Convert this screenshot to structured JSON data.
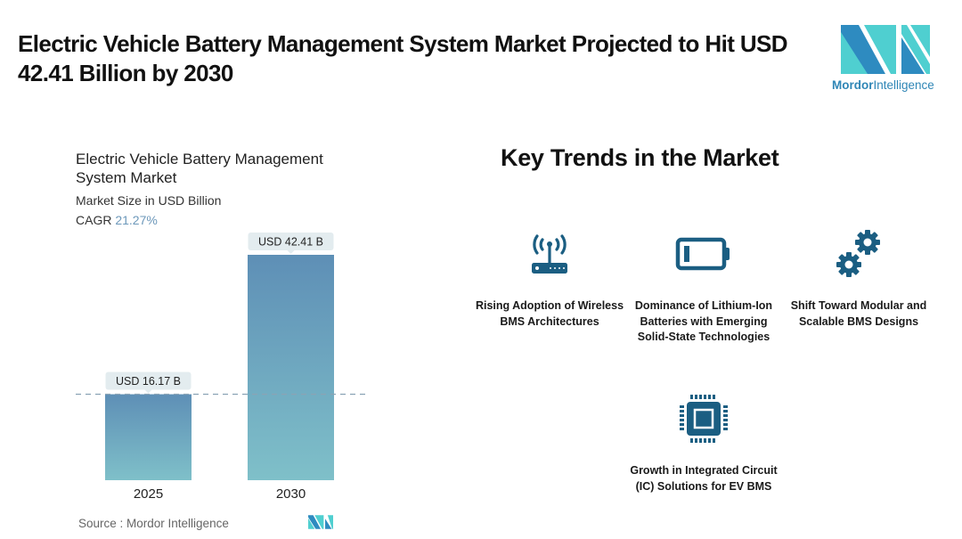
{
  "header": {
    "title": "Electric Vehicle Battery Management System Market Projected to Hit USD 42.41 Billion by 2030",
    "logo_word_bold": "Mordor",
    "logo_word_light": "Intelligence"
  },
  "chart_panel": {
    "title": "Electric Vehicle Battery Management System Market",
    "subtitle": "Market Size in USD Billion",
    "cagr_label": "CAGR",
    "cagr_value": "21.27%",
    "source": "Source :  Mordor Intelligence"
  },
  "chart_data": {
    "type": "bar",
    "title": "Electric Vehicle Battery Management System Market",
    "xlabel": "",
    "ylabel": "Market Size in USD Billion",
    "categories": [
      "2025",
      "2030"
    ],
    "values": [
      16.17,
      42.41
    ],
    "data_labels": [
      "USD 16.17 B",
      "USD 42.41 B"
    ],
    "ylim": [
      0,
      42.41
    ],
    "grid": false,
    "reference_line": {
      "value": 16.17,
      "style": "dashed"
    },
    "colors": {
      "bar_top": "#5e8fb6",
      "bar_bottom": "#7fc0c9",
      "label_bg": "#e3ecef",
      "ref_line": "#8aa3b5"
    }
  },
  "trends": {
    "title": "Key Trends in the Market",
    "items": [
      {
        "icon": "wireless-router-icon",
        "label": "Rising Adoption of Wireless BMS Architectures"
      },
      {
        "icon": "battery-icon",
        "label": "Dominance of Lithium-Ion Batteries with Emerging Solid-State Technologies"
      },
      {
        "icon": "gears-icon",
        "label": "Shift Toward Modular and Scalable BMS Designs"
      },
      {
        "icon": "microchip-icon",
        "label": "Growth in Integrated Circuit (IC) Solutions for EV BMS"
      }
    ],
    "icon_color": "#1b5e82"
  },
  "brand_colors": {
    "dark": "#2e8bc0",
    "light": "#4fcfd0"
  }
}
